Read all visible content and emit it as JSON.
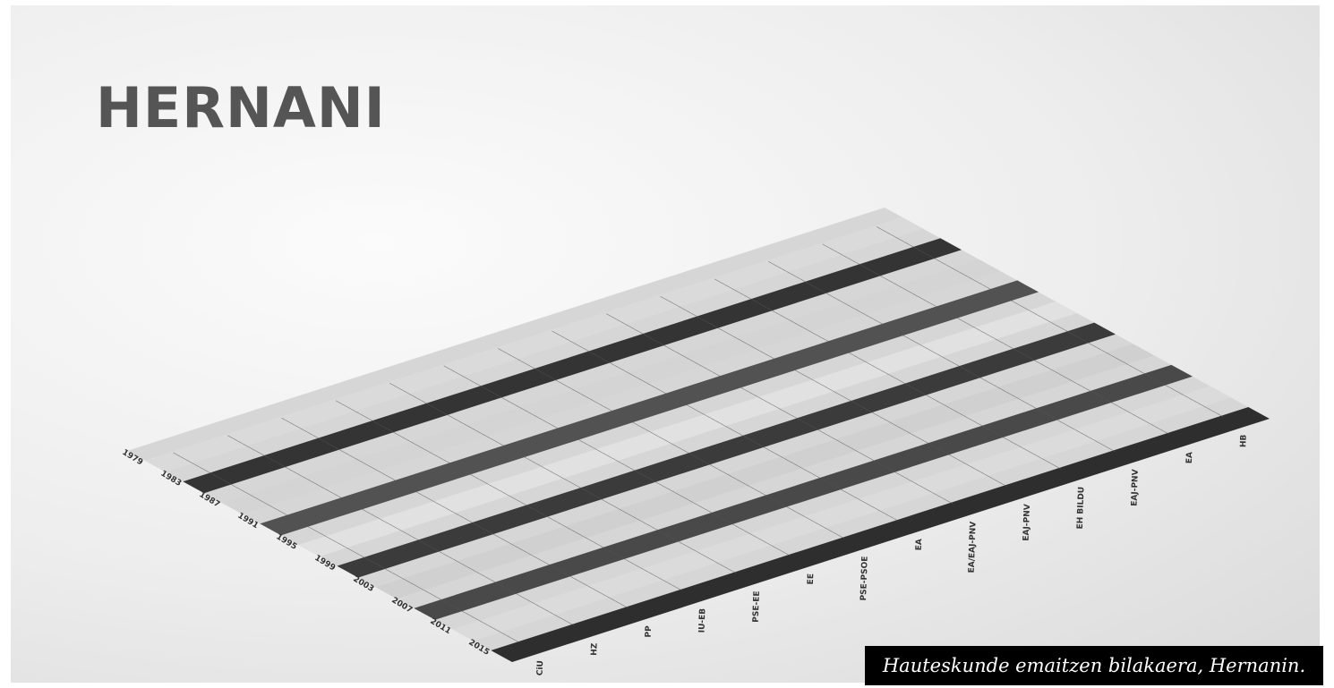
{
  "title": "HERNANI",
  "caption": "Hauteskunde emaitzen bilakaera, Hernanin.",
  "chart_data": {
    "type": "area",
    "title": "HERNANI",
    "view": "3d",
    "x_axis_label": "",
    "y_axis_label": "",
    "z_axis_label": "",
    "years": [
      "1979",
      "1983",
      "1987",
      "1991",
      "1995",
      "1999",
      "2003",
      "2007",
      "2011",
      "2015"
    ],
    "parties": [
      "CiU",
      "HZ",
      "PP",
      "IU-EB",
      "PSE-EE",
      "EE",
      "PSE-PSOE",
      "EA",
      "EA/EAJ-PNV",
      "EAJ-PNV",
      "HB",
      "EAJ-PNV",
      "EA",
      "HB"
    ],
    "party_labels_visible": [
      "CiU",
      "HZ",
      "PP",
      "IU-EB",
      "PSE-EE",
      "EE",
      "PSE-PSOE",
      "EA",
      "EA/EAJ-PNV",
      "EAJ-PNV",
      "EH BILDU",
      "EAJ-PNV",
      "EA",
      "HB"
    ],
    "grid": true,
    "colors": {
      "background_center": "#fbfbfb",
      "background_edge": "#d9d9d9",
      "floor_dark": "#1a1a1a",
      "floor_light": "#d8d8d8",
      "title": "#555555",
      "caption_bg": "#000000",
      "caption_text": "#ffffff"
    },
    "series": [
      {
        "label": "HB",
        "values": [
          0,
          0,
          0,
          0,
          0,
          0,
          0,
          0,
          0,
          0
        ]
      },
      {
        "label": "EA",
        "values": [
          0,
          0,
          0,
          0,
          0,
          0,
          0,
          0,
          0,
          0
        ]
      },
      {
        "label": "EAJ-PNV",
        "values": [
          0,
          0,
          0,
          0,
          0,
          0,
          0,
          0,
          0,
          0
        ]
      },
      {
        "label": "EH BILDU",
        "values": [
          0,
          0,
          0,
          0,
          0,
          0,
          0,
          0,
          0,
          0
        ]
      },
      {
        "label": "EAJ-PNV",
        "values": [
          0,
          0,
          0,
          0,
          0,
          0,
          0,
          0,
          0,
          0
        ]
      },
      {
        "label": "EA/EAJ-PNV",
        "values": [
          0,
          0,
          0,
          0,
          0,
          0,
          0,
          0,
          0,
          0
        ]
      },
      {
        "label": "EA",
        "values": [
          0,
          0,
          0,
          0,
          0,
          0,
          0,
          0,
          0,
          0
        ]
      },
      {
        "label": "PSE-PSOE",
        "values": [
          0,
          0,
          0,
          0,
          0,
          0,
          0,
          0,
          0,
          0
        ]
      },
      {
        "label": "EE",
        "values": [
          0,
          0,
          0,
          0,
          0,
          0,
          0,
          0,
          0,
          0
        ]
      },
      {
        "label": "PSE-EE",
        "values": [
          0,
          0,
          0,
          0,
          0,
          0,
          0,
          0,
          0,
          0
        ]
      },
      {
        "label": "IU-EB",
        "values": [
          0,
          0,
          0,
          0,
          0,
          0,
          0,
          0,
          0,
          0
        ]
      },
      {
        "label": "PP",
        "values": [
          0,
          0,
          0,
          0,
          0,
          0,
          0,
          0,
          0,
          0
        ]
      },
      {
        "label": "HZ",
        "values": [
          0,
          0,
          0,
          0,
          0,
          0,
          0,
          0,
          0,
          0
        ]
      },
      {
        "label": "CiU",
        "values": [
          0,
          0,
          0,
          0,
          0,
          0,
          0,
          0,
          0,
          0
        ]
      }
    ]
  }
}
